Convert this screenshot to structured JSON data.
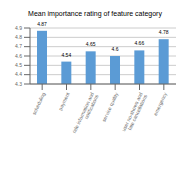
{
  "chart_data": {
    "type": "bar",
    "title": "Mean importance rating of feature category",
    "categories": [
      "scheduling",
      "payment",
      "ride information and notifications",
      "service quality",
      "user no-shows and late cancellations",
      "emergency"
    ],
    "values": [
      4.87,
      4.54,
      4.65,
      4.6,
      4.66,
      4.78
    ],
    "color": "#5B9BD5",
    "ylim": [
      4.3,
      4.9
    ],
    "yticks": [
      4.3,
      4.4,
      4.5,
      4.6,
      4.7,
      4.8,
      4.9
    ],
    "grid": true,
    "data_labels": true
  }
}
